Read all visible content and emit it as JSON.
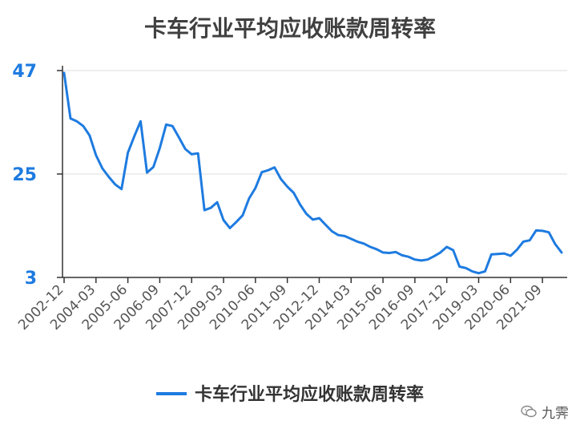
{
  "chart_data": {
    "type": "line",
    "title": "卡车行业平均应收账款周转率",
    "xlabel": "",
    "ylabel": "",
    "ylim": [
      3,
      47
    ],
    "yticks": [
      "47",
      "25",
      "3"
    ],
    "xticks": [
      "2002-12",
      "2004-03",
      "2005-06",
      "2006-09",
      "2007-12",
      "2009-03",
      "2010-06",
      "2011-09",
      "2012-12",
      "2014-03",
      "2015-06",
      "2016-09",
      "2017-12",
      "2019-03",
      "2020-06",
      "2021-09"
    ],
    "legend_position": "bottom",
    "grid": true,
    "color": "#1e7be0",
    "series": [
      {
        "name": "卡车行业平均应收账款周转率",
        "values": [
          46.5,
          36.8,
          36.2,
          35.2,
          33.2,
          29.0,
          26.2,
          24.4,
          22.8,
          21.8,
          29.5,
          33.0,
          36.2,
          25.3,
          26.5,
          30.5,
          35.5,
          35.2,
          32.8,
          30.3,
          29.2,
          29.4,
          17.3,
          17.8,
          19.0,
          15.2,
          13.5,
          14.8,
          16.2,
          19.8,
          22.0,
          25.4,
          25.8,
          26.4,
          23.9,
          22.3,
          21.0,
          18.5,
          16.5,
          15.3,
          15.6,
          14.2,
          12.8,
          12.0,
          11.8,
          11.2,
          10.6,
          10.2,
          9.5,
          9.0,
          8.3,
          8.2,
          8.4,
          7.7,
          7.4,
          6.8,
          6.6,
          6.8,
          7.5,
          8.3,
          9.5,
          8.8,
          5.3,
          5.0,
          4.3,
          3.9,
          4.3,
          7.9,
          8.0,
          8.1,
          7.6,
          8.9,
          10.6,
          10.9,
          13.0,
          12.9,
          12.6,
          10.1,
          8.3
        ]
      }
    ],
    "legend_label": "卡车行业平均应收账款周转率"
  },
  "watermark": {
    "icon": "wechat-icon",
    "text": "九霁"
  }
}
